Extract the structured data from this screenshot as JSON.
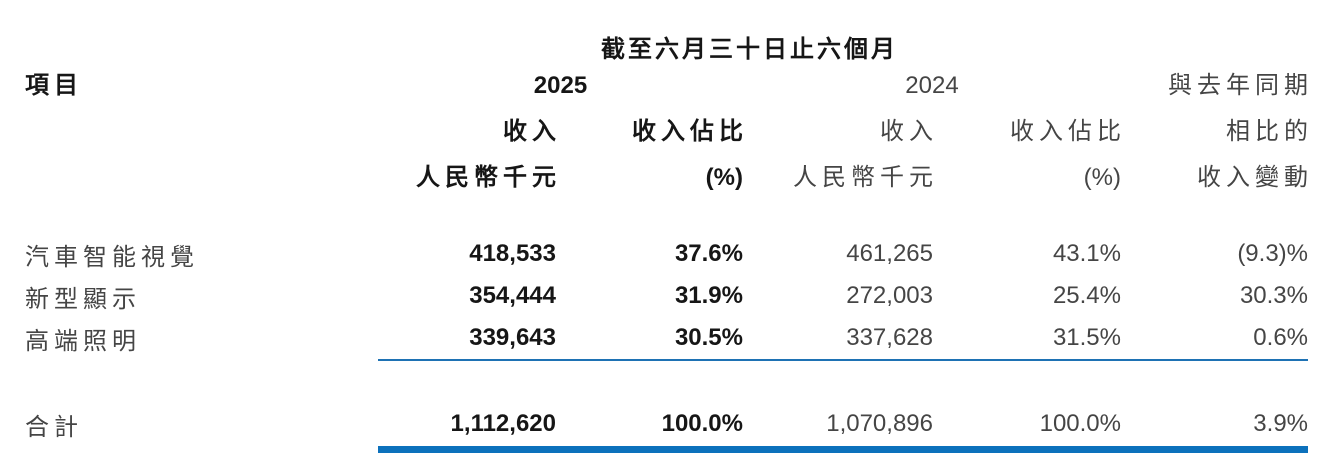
{
  "accent_color": "#0c71bc",
  "table": {
    "period_title": "截至六月三十日止六個月",
    "item_header": "項目",
    "year_2025": "2025",
    "year_2024": "2024",
    "revenue_header": "收入",
    "revenue_unit_header": "人民幣千元",
    "share_header": "收入佔比",
    "share_unit_header": "(%)",
    "change_header_line1": "與去年同期",
    "change_header_line2": "相比的",
    "change_header_line3": "收入變動",
    "rows": [
      {
        "label": "汽車智能視覺",
        "rev_2025": "418,533",
        "share_2025": "37.6%",
        "rev_2024": "461,265",
        "share_2024": "43.1%",
        "change": "(9.3)%"
      },
      {
        "label": "新型顯示",
        "rev_2025": "354,444",
        "share_2025": "31.9%",
        "rev_2024": "272,003",
        "share_2024": "25.4%",
        "change": "30.3%"
      },
      {
        "label": "高端照明",
        "rev_2025": "339,643",
        "share_2025": "30.5%",
        "rev_2024": "337,628",
        "share_2024": "31.5%",
        "change": "0.6%"
      }
    ],
    "total": {
      "label": "合計",
      "rev_2025": "1,112,620",
      "share_2025": "100.0%",
      "rev_2024": "1,070,896",
      "share_2024": "100.0%",
      "change": "3.9%"
    }
  }
}
